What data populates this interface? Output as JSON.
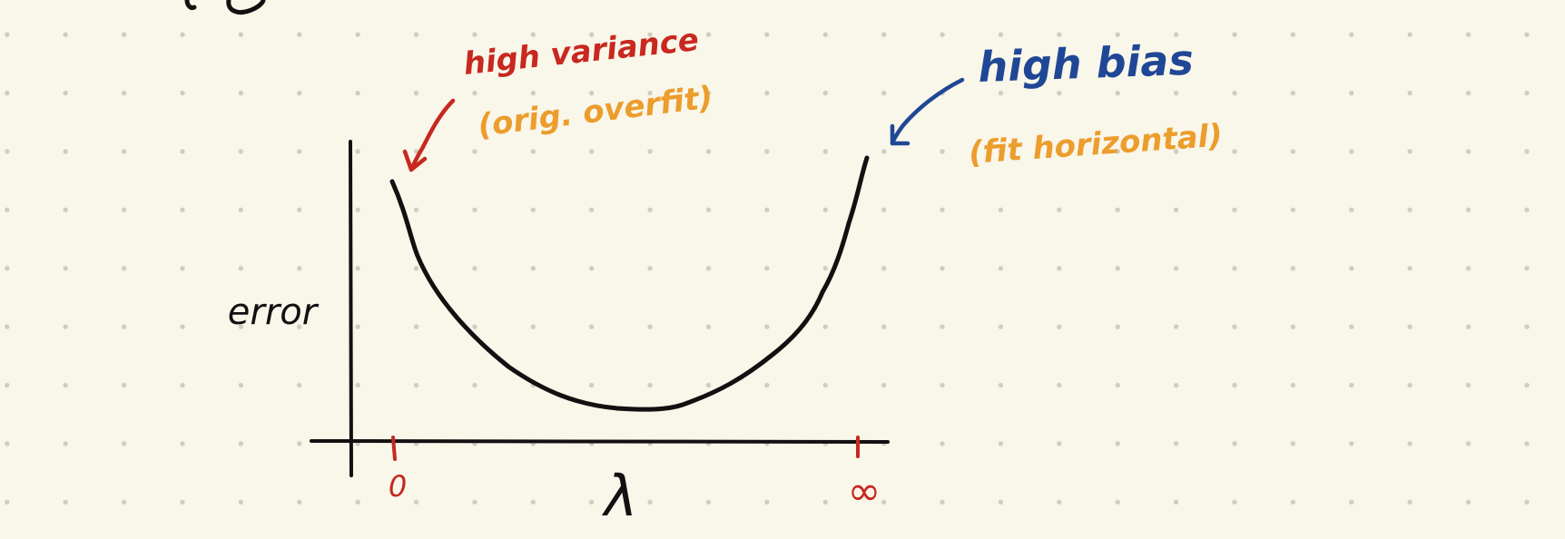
{
  "diagram": {
    "axis_label_y": "error",
    "axis_label_x": "λ",
    "tick_left_label": "0",
    "tick_right_label": "∞",
    "annotation_left": {
      "line1": "high variance",
      "line2": "(orig. overfit)"
    },
    "annotation_right": {
      "line1": "high bias",
      "line2": "(fit horizontal)"
    }
  },
  "colors": {
    "background": "#f9f6ea",
    "dots": "#cfccc2",
    "ink_black": "#111111",
    "ink_red": "#c8281f",
    "ink_blue": "#1f4796",
    "ink_orange": "#ec9d2c"
  }
}
